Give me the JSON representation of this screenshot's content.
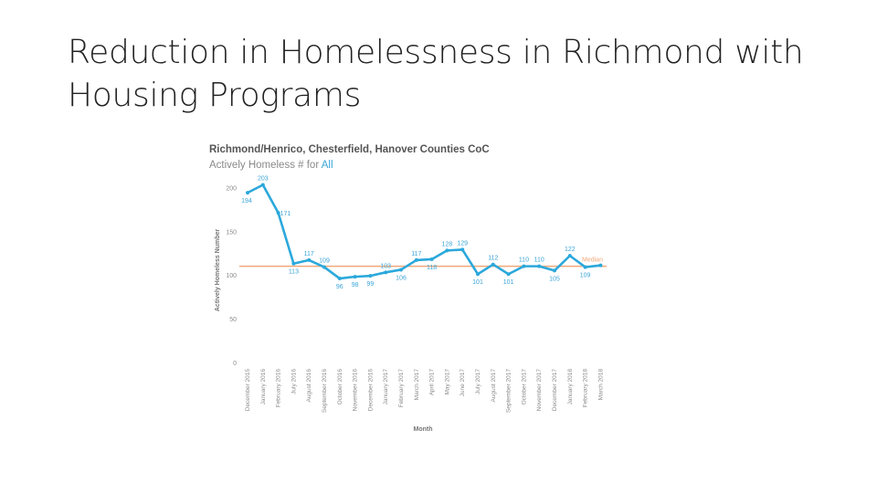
{
  "slide": {
    "title_line1": "Reduction in Homelessness in Richmond with",
    "title_line2": "Housing Programs"
  },
  "chart_data": {
    "type": "line",
    "title": "Richmond/Henrico, Chesterfield, Hanover Counties CoC",
    "subtitle_prefix": "Actively Homeless # for ",
    "subtitle_highlight": "All",
    "xlabel": "Month",
    "ylabel": "Actively Homeless Number",
    "ylim": [
      0,
      210
    ],
    "yticks": [
      0,
      50,
      100,
      150,
      200
    ],
    "categories": [
      "December 2015",
      "January 2016",
      "February 2016",
      "July 2016",
      "August 2016",
      "September 2016",
      "October 2016",
      "November 2016",
      "December 2016",
      "January 2017",
      "February 2017",
      "March 2017",
      "April 2017",
      "May 2017",
      "June 2017",
      "July 2017",
      "August 2017",
      "September 2017",
      "October 2017",
      "November 2017",
      "December 2017",
      "January 2018",
      "February 2018",
      "March 2018"
    ],
    "values": [
      194,
      203,
      171,
      113,
      117,
      109,
      96,
      98,
      99,
      103,
      106,
      117,
      118,
      128,
      129,
      101,
      112,
      101,
      110,
      110,
      105,
      122,
      109,
      111
    ],
    "data_labels": [
      "194",
      "203",
      "171",
      "113",
      "117",
      "109",
      "96",
      "98",
      "99",
      "103",
      "106",
      "117",
      "118",
      "128",
      "129",
      "101",
      "112",
      "101",
      "110",
      "110",
      "105",
      "122",
      "109",
      ""
    ],
    "reference_line": {
      "label": "Median",
      "value": 110
    },
    "colors": {
      "line": "#2ba8db",
      "median": "#f0a87a",
      "label": "#3aa4d8",
      "axis_text": "#8c8c8c"
    }
  }
}
